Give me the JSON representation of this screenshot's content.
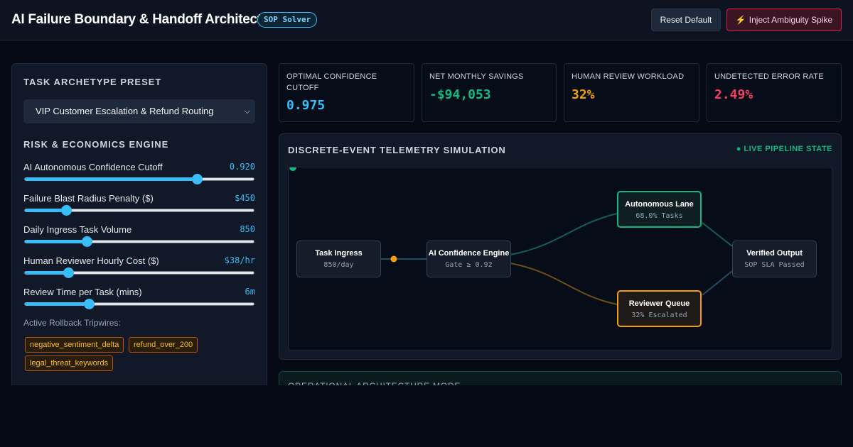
{
  "header": {
    "title": "AI Failure Boundary & Handoff Architect",
    "badge": "SOP Solver",
    "reset_label": "Reset Default",
    "inject_label": "Inject Ambiguity Spike",
    "inject_icon": "lightning-icon"
  },
  "sidebar": {
    "preset_heading": "TASK ARCHETYPE PRESET",
    "preset_selected": "VIP Customer Escalation & Refund Routing",
    "engine_heading": "RISK & ECONOMICS ENGINE",
    "sliders": [
      {
        "label": "AI Autonomous Confidence Cutoff",
        "value": "0.920",
        "fraction": 0.75
      },
      {
        "label": "Failure Blast Radius Penalty ($)",
        "value": "$450",
        "fraction": 0.18
      },
      {
        "label": "Daily Ingress Task Volume",
        "value": "850",
        "fraction": 0.27
      },
      {
        "label": "Human Reviewer Hourly Cost ($)",
        "value": "$38/hr",
        "fraction": 0.19
      },
      {
        "label": "Review Time per Task (mins)",
        "value": "6m",
        "fraction": 0.28
      }
    ],
    "tripwires_label": "Active Rollback Tripwires:",
    "tripwires": [
      "negative_sentiment_delta",
      "refund_over_200",
      "legal_threat_keywords"
    ]
  },
  "metrics": [
    {
      "label": "OPTIMAL CONFIDENCE CUTOFF",
      "value": "0.975",
      "color": "#38bdf8"
    },
    {
      "label": "NET MONTHLY SAVINGS",
      "value": "-$94,053",
      "color": "#10b981"
    },
    {
      "label": "HUMAN REVIEW WORKLOAD",
      "value": "32%",
      "color": "#f59e0b"
    },
    {
      "label": "UNDETECTED ERROR RATE",
      "value": "2.49%",
      "color": "#f43f5e"
    }
  ],
  "telemetry": {
    "title": "DISCRETE-EVENT TELEMETRY SIMULATION",
    "status": "● LIVE PIPELINE STATE",
    "nodes": {
      "ingress": {
        "title": "Task Ingress",
        "sub": "850/day"
      },
      "engine": {
        "title": "AI Confidence Engine",
        "sub": "Gate ≥ 0.92"
      },
      "autonomous": {
        "title": "Autonomous Lane",
        "sub": "68.0% Tasks"
      },
      "reviewer": {
        "title": "Reviewer Queue",
        "sub": "32% Escalated"
      },
      "output": {
        "title": "Verified Output",
        "sub": "SOP SLA Passed"
      }
    }
  },
  "mode_panel": {
    "title": "OPERATIONAL ARCHITECTURE MODE"
  }
}
